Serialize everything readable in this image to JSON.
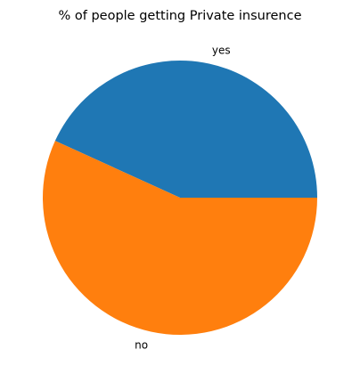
{
  "chart_data": {
    "type": "pie",
    "title": "% of people getting Private insurence",
    "slices": [
      {
        "label": "yes",
        "value": 43.2,
        "color": "#1f77b4"
      },
      {
        "label": "no",
        "value": 56.8,
        "color": "#ff7f0e"
      }
    ],
    "start_angle_deg": 0,
    "direction": "counterclockwise",
    "legend": "none",
    "grid": false
  }
}
